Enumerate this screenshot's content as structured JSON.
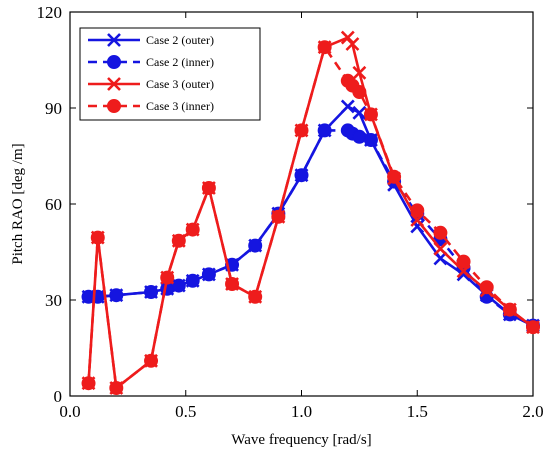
{
  "chart_data": {
    "type": "line",
    "xlabel": "Wave frequency [rad/s]",
    "ylabel": "Pitch RAO [deg /m]",
    "xlim": [
      0.0,
      2.0
    ],
    "ylim": [
      0,
      120
    ],
    "xticks": [
      "0.0",
      "0.5",
      "1.0",
      "1.5",
      "2.0"
    ],
    "yticks": [
      "0",
      "30",
      "60",
      "90",
      "120"
    ],
    "grid": false,
    "legend_position": "top-left",
    "series": [
      {
        "name": "Case 2 (outer)",
        "color": "#1515e0",
        "line": "solid",
        "marker": "x",
        "x": [
          0.08,
          0.12,
          0.2,
          0.35,
          0.42,
          0.47,
          0.53,
          0.6,
          0.7,
          0.8,
          0.9,
          1.0,
          1.1,
          1.2,
          1.25,
          1.3,
          1.4,
          1.5,
          1.6,
          1.7,
          1.8,
          1.9,
          2.0
        ],
        "y": [
          31,
          31,
          31.5,
          32.5,
          33.5,
          34.5,
          36,
          38,
          41,
          47,
          57,
          69,
          83,
          90.5,
          88.5,
          80,
          66,
          53,
          43,
          38,
          31.5,
          25.5,
          22
        ]
      },
      {
        "name": "Case 2 (inner)",
        "color": "#1515e0",
        "line": "dashed",
        "marker": "o",
        "x": [
          0.08,
          0.12,
          0.2,
          0.35,
          0.42,
          0.47,
          0.53,
          0.6,
          0.7,
          0.8,
          0.9,
          1.0,
          1.1,
          1.2,
          1.22,
          1.25,
          1.3,
          1.4,
          1.5,
          1.6,
          1.7,
          1.8,
          1.9,
          2.0
        ],
        "y": [
          31,
          31,
          31.5,
          32.5,
          33.5,
          34.5,
          36,
          38,
          41,
          47,
          57,
          69,
          83,
          83,
          82,
          81,
          80,
          67,
          57,
          49,
          40,
          31,
          25.5,
          22
        ]
      },
      {
        "name": "Case 3 (outer)",
        "color": "#ee1c1c",
        "line": "solid",
        "marker": "x",
        "x": [
          0.08,
          0.12,
          0.2,
          0.35,
          0.42,
          0.47,
          0.53,
          0.6,
          0.7,
          0.8,
          0.9,
          1.0,
          1.1,
          1.2,
          1.22,
          1.25,
          1.3,
          1.4,
          1.5,
          1.6,
          1.7,
          1.8,
          1.9,
          2.0
        ],
        "y": [
          4,
          49.5,
          2.5,
          11,
          37,
          48.5,
          52,
          65,
          35,
          31,
          56,
          83,
          109,
          112,
          110,
          101,
          88,
          68,
          55,
          46,
          39,
          33,
          27,
          21.5
        ]
      },
      {
        "name": "Case 3 (inner)",
        "color": "#ee1c1c",
        "line": "dashed",
        "marker": "o",
        "x": [
          0.08,
          0.12,
          0.2,
          0.35,
          0.42,
          0.47,
          0.53,
          0.6,
          0.7,
          0.8,
          0.9,
          1.0,
          1.1,
          1.2,
          1.22,
          1.25,
          1.3,
          1.4,
          1.5,
          1.6,
          1.7,
          1.8,
          1.9,
          2.0
        ],
        "y": [
          4,
          49.5,
          2.5,
          11,
          37,
          48.5,
          52,
          65,
          35,
          31,
          56,
          83,
          109,
          98.5,
          97,
          95,
          88,
          68.5,
          58,
          51,
          42,
          34,
          27,
          21.5
        ]
      }
    ]
  }
}
